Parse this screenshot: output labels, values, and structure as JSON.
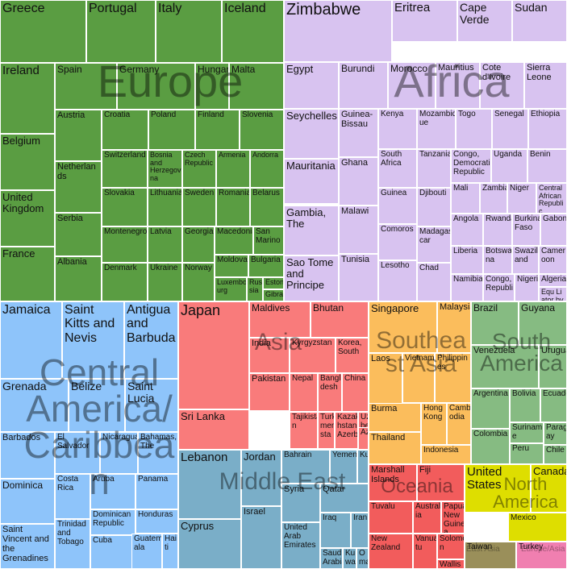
{
  "chart_data": {
    "type": "treemap",
    "colors": {
      "Europe": "#5a9d42",
      "Africa": "#d8c3f0",
      "Central America/Caribbean": "#8ec4fa",
      "Asia": "#f97b7b",
      "Middle East": "#7aaec8",
      "Southeast Asia": "#fbbd5c",
      "South America": "#86bb82",
      "Oceania": "#f25c5c",
      "North America": "#dede00",
      "East Asia": "#9a8f5a",
      "Europe/Asia": "#f07fb0"
    },
    "region_labels": [
      {
        "region": "Europe",
        "text": "Europe"
      },
      {
        "region": "Africa",
        "text": "Africa"
      },
      {
        "region": "Central America/Caribbean",
        "text": "Central America/Caribbean"
      },
      {
        "region": "Asia",
        "text": "Asia"
      },
      {
        "region": "Middle East",
        "text": "Middle East"
      },
      {
        "region": "Southeast Asia",
        "text": "Southeast Asia"
      },
      {
        "region": "South America",
        "text": "South America"
      },
      {
        "region": "Oceania",
        "text": "Oceania"
      },
      {
        "region": "North America",
        "text": "North America"
      },
      {
        "region": "East Asia",
        "text": "East Asia"
      },
      {
        "region": "Europe/Asia",
        "text": "Europe/Asia"
      }
    ],
    "tiles": [
      {
        "name": "Greece",
        "region": "Europe"
      },
      {
        "name": "Portugal",
        "region": "Europe"
      },
      {
        "name": "Italy",
        "region": "Europe"
      },
      {
        "name": "Iceland",
        "region": "Europe"
      },
      {
        "name": "Ireland",
        "region": "Europe"
      },
      {
        "name": "Spain",
        "region": "Europe"
      },
      {
        "name": "Germany",
        "region": "Europe"
      },
      {
        "name": "Hungary",
        "region": "Europe"
      },
      {
        "name": "Malta",
        "region": "Europe"
      },
      {
        "name": "Austria",
        "region": "Europe"
      },
      {
        "name": "Croatia",
        "region": "Europe"
      },
      {
        "name": "Poland",
        "region": "Europe"
      },
      {
        "name": "Finland",
        "region": "Europe"
      },
      {
        "name": "Slovenia",
        "region": "Europe"
      },
      {
        "name": "Belgium",
        "region": "Europe"
      },
      {
        "name": "Netherlands",
        "region": "Europe"
      },
      {
        "name": "Switzerland",
        "region": "Europe"
      },
      {
        "name": "Bosnia and Herzegovina",
        "region": "Europe"
      },
      {
        "name": "Czech Republic",
        "region": "Europe"
      },
      {
        "name": "Armenia",
        "region": "Europe"
      },
      {
        "name": "Andorra",
        "region": "Europe"
      },
      {
        "name": "United Kingdom",
        "region": "Europe"
      },
      {
        "name": "Slovakia",
        "region": "Europe"
      },
      {
        "name": "Lithuania",
        "region": "Europe"
      },
      {
        "name": "Sweden",
        "region": "Europe"
      },
      {
        "name": "Romania",
        "region": "Europe"
      },
      {
        "name": "Belarus",
        "region": "Europe"
      },
      {
        "name": "Serbia",
        "region": "Europe"
      },
      {
        "name": "Montenegro",
        "region": "Europe"
      },
      {
        "name": "Latvia",
        "region": "Europe"
      },
      {
        "name": "Georgia",
        "region": "Europe"
      },
      {
        "name": "Macedonia",
        "region": "Europe"
      },
      {
        "name": "San Marino",
        "region": "Europe"
      },
      {
        "name": "France",
        "region": "Europe"
      },
      {
        "name": "Albania",
        "region": "Europe"
      },
      {
        "name": "Denmark",
        "region": "Europe"
      },
      {
        "name": "Ukraine",
        "region": "Europe"
      },
      {
        "name": "Norway",
        "region": "Europe"
      },
      {
        "name": "Moldova",
        "region": "Europe"
      },
      {
        "name": "Bulgaria",
        "region": "Europe"
      },
      {
        "name": "Luxembourg",
        "region": "Europe"
      },
      {
        "name": "Russia",
        "region": "Europe"
      },
      {
        "name": "Estonia",
        "region": "Europe"
      },
      {
        "name": "Gibraltar",
        "region": "Europe"
      },
      {
        "name": "Zimbabwe",
        "region": "Africa"
      },
      {
        "name": "Eritrea",
        "region": "Africa"
      },
      {
        "name": "Cape Verde",
        "region": "Africa"
      },
      {
        "name": "Sudan",
        "region": "Africa"
      },
      {
        "name": "Egypt",
        "region": "Africa"
      },
      {
        "name": "Burundi",
        "region": "Africa"
      },
      {
        "name": "Morocco",
        "region": "Africa"
      },
      {
        "name": "Mauritius",
        "region": "Africa"
      },
      {
        "name": "Cote d'Ivoire",
        "region": "Africa"
      },
      {
        "name": "Sierra Leone",
        "region": "Africa"
      },
      {
        "name": "Seychelles",
        "region": "Africa"
      },
      {
        "name": "Guinea-Bissau",
        "region": "Africa"
      },
      {
        "name": "Kenya",
        "region": "Africa"
      },
      {
        "name": "Mozambique",
        "region": "Africa"
      },
      {
        "name": "Togo",
        "region": "Africa"
      },
      {
        "name": "Senegal",
        "region": "Africa"
      },
      {
        "name": "Ethiopia",
        "region": "Africa"
      },
      {
        "name": "Mauritania",
        "region": "Africa"
      },
      {
        "name": "Ghana",
        "region": "Africa"
      },
      {
        "name": "South Africa",
        "region": "Africa"
      },
      {
        "name": "Tanzania",
        "region": "Africa"
      },
      {
        "name": "Congo, Democratic Republic",
        "region": "Africa"
      },
      {
        "name": "Uganda",
        "region": "Africa"
      },
      {
        "name": "Benin",
        "region": "Africa"
      },
      {
        "name": "Guinea",
        "region": "Africa"
      },
      {
        "name": "Djibouti",
        "region": "Africa"
      },
      {
        "name": "Mali",
        "region": "Africa"
      },
      {
        "name": "Zambia",
        "region": "Africa"
      },
      {
        "name": "Niger",
        "region": "Africa"
      },
      {
        "name": "Central African Republic",
        "region": "Africa"
      },
      {
        "name": "Gambia, The",
        "region": "Africa"
      },
      {
        "name": "Malawi",
        "region": "Africa"
      },
      {
        "name": "Comoros",
        "region": "Africa"
      },
      {
        "name": "Madagascar",
        "region": "Africa"
      },
      {
        "name": "Angola",
        "region": "Africa"
      },
      {
        "name": "Rwanda",
        "region": "Africa"
      },
      {
        "name": "Burkina Faso",
        "region": "Africa"
      },
      {
        "name": "Gabon",
        "region": "Africa"
      },
      {
        "name": "Liberia",
        "region": "Africa"
      },
      {
        "name": "Botswana",
        "region": "Africa"
      },
      {
        "name": "Swaziland",
        "region": "Africa"
      },
      {
        "name": "Cameroon",
        "region": "Africa"
      },
      {
        "name": "Sao Tome and Principe",
        "region": "Africa"
      },
      {
        "name": "Tunisia",
        "region": "Africa"
      },
      {
        "name": "Lesotho",
        "region": "Africa"
      },
      {
        "name": "Chad",
        "region": "Africa"
      },
      {
        "name": "Namibia",
        "region": "Africa"
      },
      {
        "name": "Congo, Republic",
        "region": "Africa"
      },
      {
        "name": "Nigeria",
        "region": "Africa"
      },
      {
        "name": "Algeria",
        "region": "Africa"
      },
      {
        "name": "Equatorial Guinea",
        "region": "Africa"
      },
      {
        "name": "Jamaica",
        "region": "Central America/Caribbean"
      },
      {
        "name": "Saint Kitts and Nevis",
        "region": "Central America/Caribbean"
      },
      {
        "name": "Antigua and Barbuda",
        "region": "Central America/Caribbean"
      },
      {
        "name": "Grenada",
        "region": "Central America/Caribbean"
      },
      {
        "name": "Belize",
        "region": "Central America/Caribbean"
      },
      {
        "name": "Saint Lucia",
        "region": "Central America/Caribbean"
      },
      {
        "name": "Barbados",
        "region": "Central America/Caribbean"
      },
      {
        "name": "El Salvador",
        "region": "Central America/Caribbean"
      },
      {
        "name": "Nicaragua",
        "region": "Central America/Caribbean"
      },
      {
        "name": "Bahamas, The",
        "region": "Central America/Caribbean"
      },
      {
        "name": "Dominica",
        "region": "Central America/Caribbean"
      },
      {
        "name": "Costa Rica",
        "region": "Central America/Caribbean"
      },
      {
        "name": "Aruba",
        "region": "Central America/Caribbean"
      },
      {
        "name": "Panama",
        "region": "Central America/Caribbean"
      },
      {
        "name": "Saint Vincent and the Grenadines",
        "region": "Central America/Caribbean"
      },
      {
        "name": "Trinidad and Tobago",
        "region": "Central America/Caribbean"
      },
      {
        "name": "Dominican Republic",
        "region": "Central America/Caribbean"
      },
      {
        "name": "Honduras",
        "region": "Central America/Caribbean"
      },
      {
        "name": "Cuba",
        "region": "Central America/Caribbean"
      },
      {
        "name": "Guatemala",
        "region": "Central America/Caribbean"
      },
      {
        "name": "Haiti",
        "region": "Central America/Caribbean"
      },
      {
        "name": "Japan",
        "region": "Asia"
      },
      {
        "name": "Maldives",
        "region": "Asia"
      },
      {
        "name": "Bhutan",
        "region": "Asia"
      },
      {
        "name": "India",
        "region": "Asia"
      },
      {
        "name": "Kyrgyzstan",
        "region": "Asia"
      },
      {
        "name": "Korea, South",
        "region": "Asia"
      },
      {
        "name": "Nepal",
        "region": "Asia"
      },
      {
        "name": "Bangladesh",
        "region": "Asia"
      },
      {
        "name": "China",
        "region": "Asia"
      },
      {
        "name": "Pakistan",
        "region": "Asia"
      },
      {
        "name": "Sri Lanka",
        "region": "Asia"
      },
      {
        "name": "Tajikistan",
        "region": "Asia"
      },
      {
        "name": "Turkmenistan",
        "region": "Asia"
      },
      {
        "name": "Kazakhstan",
        "region": "Asia"
      },
      {
        "name": "Uzbekistan",
        "region": "Asia"
      },
      {
        "name": "Azerbaijan",
        "region": "Asia"
      },
      {
        "name": "Lebanon",
        "region": "Middle East"
      },
      {
        "name": "Jordan",
        "region": "Middle East"
      },
      {
        "name": "Bahrain",
        "region": "Middle East"
      },
      {
        "name": "Yemen",
        "region": "Middle East"
      },
      {
        "name": "Kuwait",
        "region": "Middle East"
      },
      {
        "name": "Syria",
        "region": "Middle East"
      },
      {
        "name": "Qatar",
        "region": "Middle East"
      },
      {
        "name": "Israel",
        "region": "Middle East"
      },
      {
        "name": "Iraq",
        "region": "Middle East"
      },
      {
        "name": "Iran",
        "region": "Middle East"
      },
      {
        "name": "Cyprus",
        "region": "Middle East"
      },
      {
        "name": "United Arab Emirates",
        "region": "Middle East"
      },
      {
        "name": "Saudi Arabia",
        "region": "Middle East"
      },
      {
        "name": "Kuwait",
        "region": "Middle East"
      },
      {
        "name": "Oman",
        "region": "Middle East"
      },
      {
        "name": "Singapore",
        "region": "Southeast Asia"
      },
      {
        "name": "Malaysia",
        "region": "Southeast Asia"
      },
      {
        "name": "Laos",
        "region": "Southeast Asia"
      },
      {
        "name": "Vietnam",
        "region": "Southeast Asia"
      },
      {
        "name": "Philippines",
        "region": "Southeast Asia"
      },
      {
        "name": "Burma",
        "region": "Southeast Asia"
      },
      {
        "name": "Hong Kong",
        "region": "Southeast Asia"
      },
      {
        "name": "Cambodia",
        "region": "Southeast Asia"
      },
      {
        "name": "Thailand",
        "region": "Southeast Asia"
      },
      {
        "name": "Indonesia",
        "region": "Southeast Asia"
      },
      {
        "name": "Brazil",
        "region": "South America"
      },
      {
        "name": "Guyana",
        "region": "South America"
      },
      {
        "name": "Venezuela",
        "region": "South America"
      },
      {
        "name": "Uruguay",
        "region": "South America"
      },
      {
        "name": "Argentina",
        "region": "South America"
      },
      {
        "name": "Bolivia",
        "region": "South America"
      },
      {
        "name": "Ecuador",
        "region": "South America"
      },
      {
        "name": "Colombia",
        "region": "South America"
      },
      {
        "name": "Suriname",
        "region": "South America"
      },
      {
        "name": "Paraguay",
        "region": "South America"
      },
      {
        "name": "Peru",
        "region": "South America"
      },
      {
        "name": "Chile",
        "region": "South America"
      },
      {
        "name": "Marshall Islands",
        "region": "Oceania"
      },
      {
        "name": "Fiji",
        "region": "Oceania"
      },
      {
        "name": "Tuvalu",
        "region": "Oceania"
      },
      {
        "name": "Australia",
        "region": "Oceania"
      },
      {
        "name": "Papua New Guinea",
        "region": "Oceania"
      },
      {
        "name": "Vanuatu",
        "region": "Oceania"
      },
      {
        "name": "New Zealand",
        "region": "Oceania"
      },
      {
        "name": "Solomon",
        "region": "Oceania"
      },
      {
        "name": "Wallis",
        "region": "Oceania"
      },
      {
        "name": "United States",
        "region": "North America"
      },
      {
        "name": "Canada",
        "region": "North America"
      },
      {
        "name": "Mexico",
        "region": "North America"
      },
      {
        "name": "Taiwan",
        "region": "East Asia"
      },
      {
        "name": "Turkey",
        "region": "Europe/Asia"
      }
    ]
  }
}
